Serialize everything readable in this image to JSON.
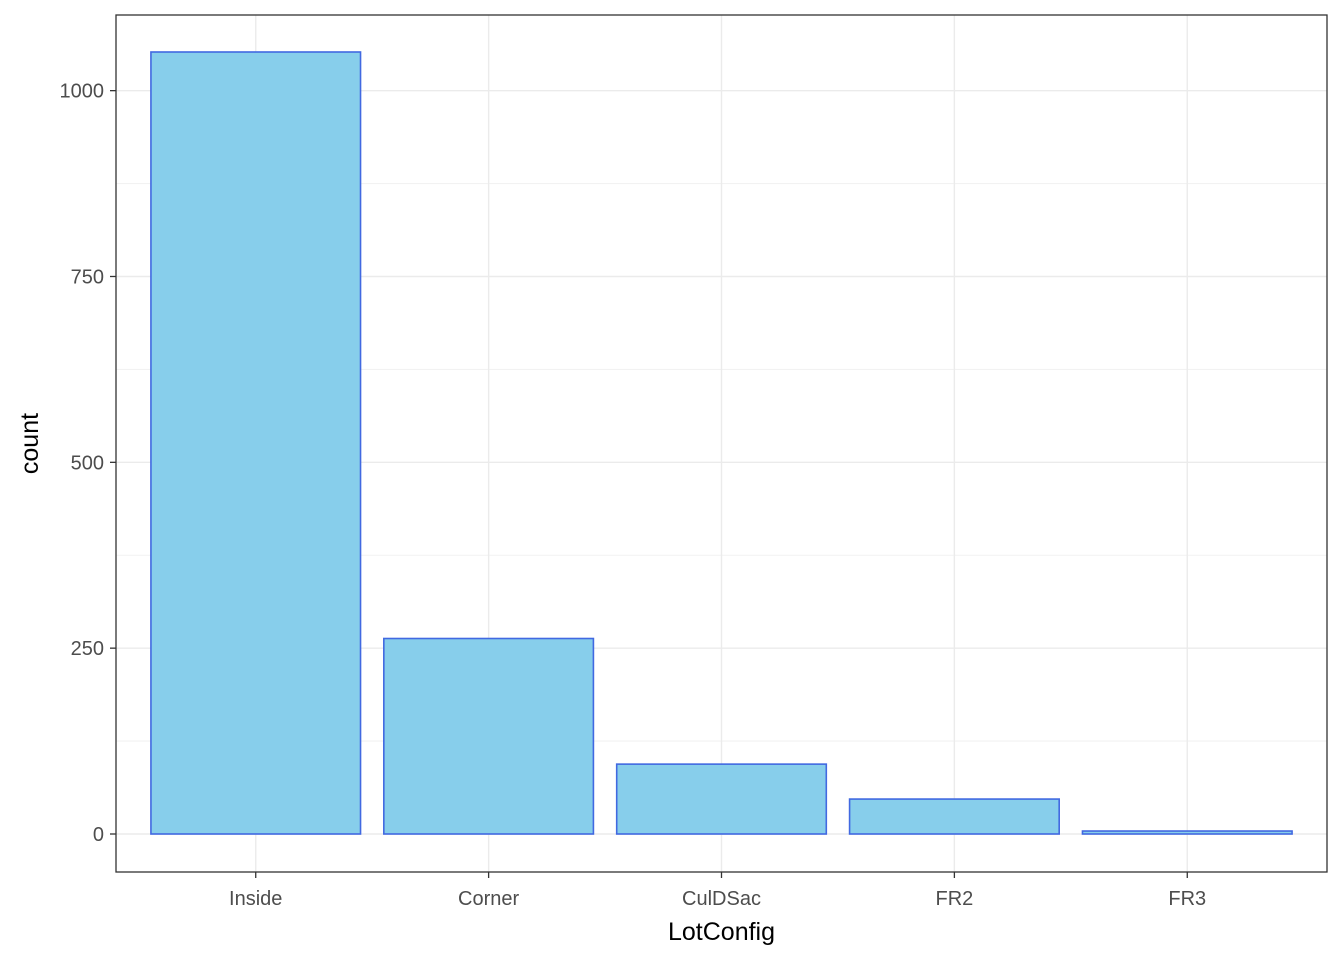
{
  "chart_data": {
    "type": "bar",
    "title": "",
    "xlabel": "LotConfig",
    "ylabel": "count",
    "categories": [
      "Inside",
      "Corner",
      "CulDSac",
      "FR2",
      "FR3"
    ],
    "values": [
      1052,
      263,
      94,
      47,
      4
    ],
    "ylim": [
      0,
      1095
    ],
    "yticks": [
      0,
      250,
      500,
      750,
      1000
    ],
    "ytick_labels": [
      "0",
      "250",
      "500",
      "750",
      "1000"
    ],
    "grid": true,
    "legend": "none",
    "colors": {
      "bar_fill": "#87CEEB",
      "bar_stroke": "#4169E1",
      "grid_major": "#EBEBEB",
      "grid_minor": "#F2F2F2",
      "panel_border": "#333333",
      "tick_text": "#4D4D4D",
      "title_text": "#000000"
    }
  }
}
